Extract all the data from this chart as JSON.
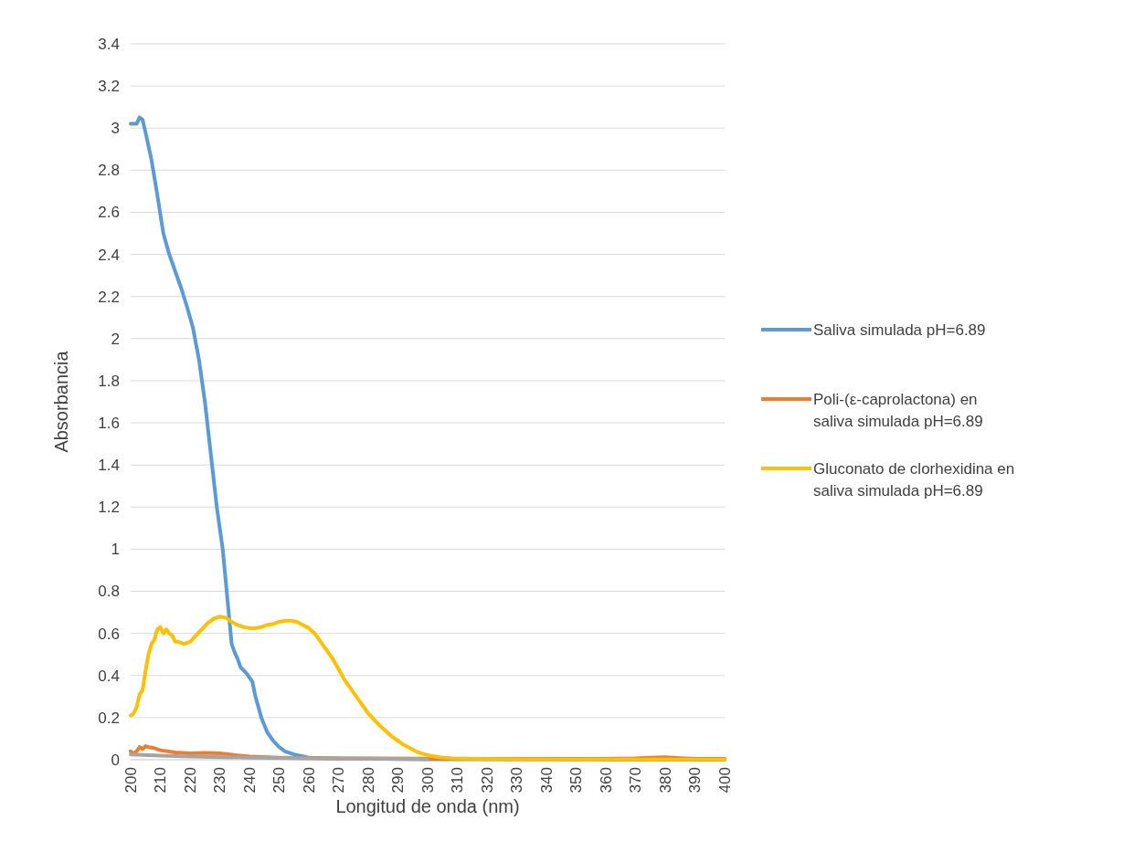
{
  "chart_data": {
    "type": "line",
    "xlabel": "Longitud de onda (nm)",
    "ylabel": "Absorbancia",
    "xlim": [
      200,
      400
    ],
    "xticks": [
      200,
      210,
      220,
      230,
      240,
      250,
      260,
      270,
      280,
      290,
      300,
      310,
      320,
      330,
      340,
      350,
      360,
      370,
      380,
      390,
      400
    ],
    "ylim": [
      0,
      3.4
    ],
    "yticks": [
      0,
      0.2,
      0.4,
      0.6,
      0.8,
      1,
      1.2,
      1.4,
      1.6,
      1.8,
      2,
      2.2,
      2.4,
      2.6,
      2.8,
      3,
      3.2,
      3.4
    ],
    "grid": "y",
    "legend": "right",
    "marker": "none",
    "line_style": "solid",
    "series": [
      {
        "name": "Saliva simulada pH=6.89",
        "color": "#5b9bd5",
        "x": [
          200,
          202,
          203,
          204,
          205,
          207,
          209,
          211,
          213,
          215,
          217,
          219,
          221,
          223,
          225,
          227,
          229,
          231,
          232,
          233,
          234,
          235,
          236,
          237,
          239,
          241,
          242,
          244,
          246,
          248,
          250,
          252,
          255,
          260,
          270,
          300,
          400
        ],
        "values": [
          3.02,
          3.02,
          3.05,
          3.04,
          2.98,
          2.85,
          2.68,
          2.5,
          2.4,
          2.32,
          2.24,
          2.15,
          2.05,
          1.9,
          1.7,
          1.45,
          1.2,
          1.0,
          0.85,
          0.7,
          0.55,
          0.51,
          0.48,
          0.44,
          0.41,
          0.37,
          0.3,
          0.2,
          0.13,
          0.09,
          0.06,
          0.04,
          0.025,
          0.01,
          0.005,
          0.002,
          0
        ]
      },
      {
        "name": "Poli-(ε-caprolactona) en saliva simulada pH=6.89",
        "color": "#ed7d31",
        "x": [
          200,
          201,
          202,
          203,
          204,
          205,
          206,
          208,
          210,
          215,
          220,
          225,
          230,
          235,
          240,
          250,
          260,
          280,
          300,
          320,
          360,
          370,
          375,
          380,
          385,
          390,
          400
        ],
        "values": [
          0.04,
          0.03,
          0.04,
          0.06,
          0.05,
          0.065,
          0.06,
          0.055,
          0.045,
          0.035,
          0.03,
          0.032,
          0.03,
          0.022,
          0.015,
          0.01,
          0.008,
          0.006,
          0.005,
          0.004,
          0.004,
          0.006,
          0.01,
          0.012,
          0.008,
          0.004,
          0.004
        ]
      },
      {
        "color": "#a5a5a5",
        "x": [
          200,
          210,
          220,
          240,
          260,
          300
        ],
        "values": [
          0.025,
          0.02,
          0.015,
          0.01,
          0.006,
          0.003
        ]
      },
      {
        "name": "Gluconato de clorhexidina en saliva simulada pH=6.89",
        "color": "#ffc000",
        "x": [
          200,
          201,
          202,
          203,
          204,
          205,
          206,
          207,
          208,
          209,
          210,
          211,
          212,
          213,
          214,
          215,
          216,
          218,
          220,
          222,
          224,
          226,
          228,
          230,
          232,
          234,
          236,
          238,
          240,
          242,
          244,
          246,
          248,
          250,
          252,
          254,
          256,
          258,
          260,
          262,
          264,
          266,
          268,
          270,
          272,
          274,
          276,
          278,
          280,
          282,
          284,
          286,
          288,
          290,
          292,
          294,
          296,
          298,
          300,
          304,
          308,
          315,
          330,
          400
        ],
        "values": [
          0.21,
          0.22,
          0.25,
          0.31,
          0.33,
          0.42,
          0.5,
          0.55,
          0.57,
          0.62,
          0.63,
          0.6,
          0.62,
          0.6,
          0.59,
          0.56,
          0.56,
          0.55,
          0.56,
          0.59,
          0.62,
          0.65,
          0.67,
          0.68,
          0.675,
          0.655,
          0.64,
          0.63,
          0.625,
          0.625,
          0.63,
          0.64,
          0.645,
          0.655,
          0.66,
          0.66,
          0.655,
          0.64,
          0.625,
          0.6,
          0.56,
          0.52,
          0.48,
          0.43,
          0.38,
          0.34,
          0.3,
          0.26,
          0.22,
          0.19,
          0.16,
          0.135,
          0.11,
          0.09,
          0.07,
          0.055,
          0.04,
          0.03,
          0.022,
          0.012,
          0.007,
          0.004,
          0.002,
          0.001
        ]
      }
    ]
  }
}
